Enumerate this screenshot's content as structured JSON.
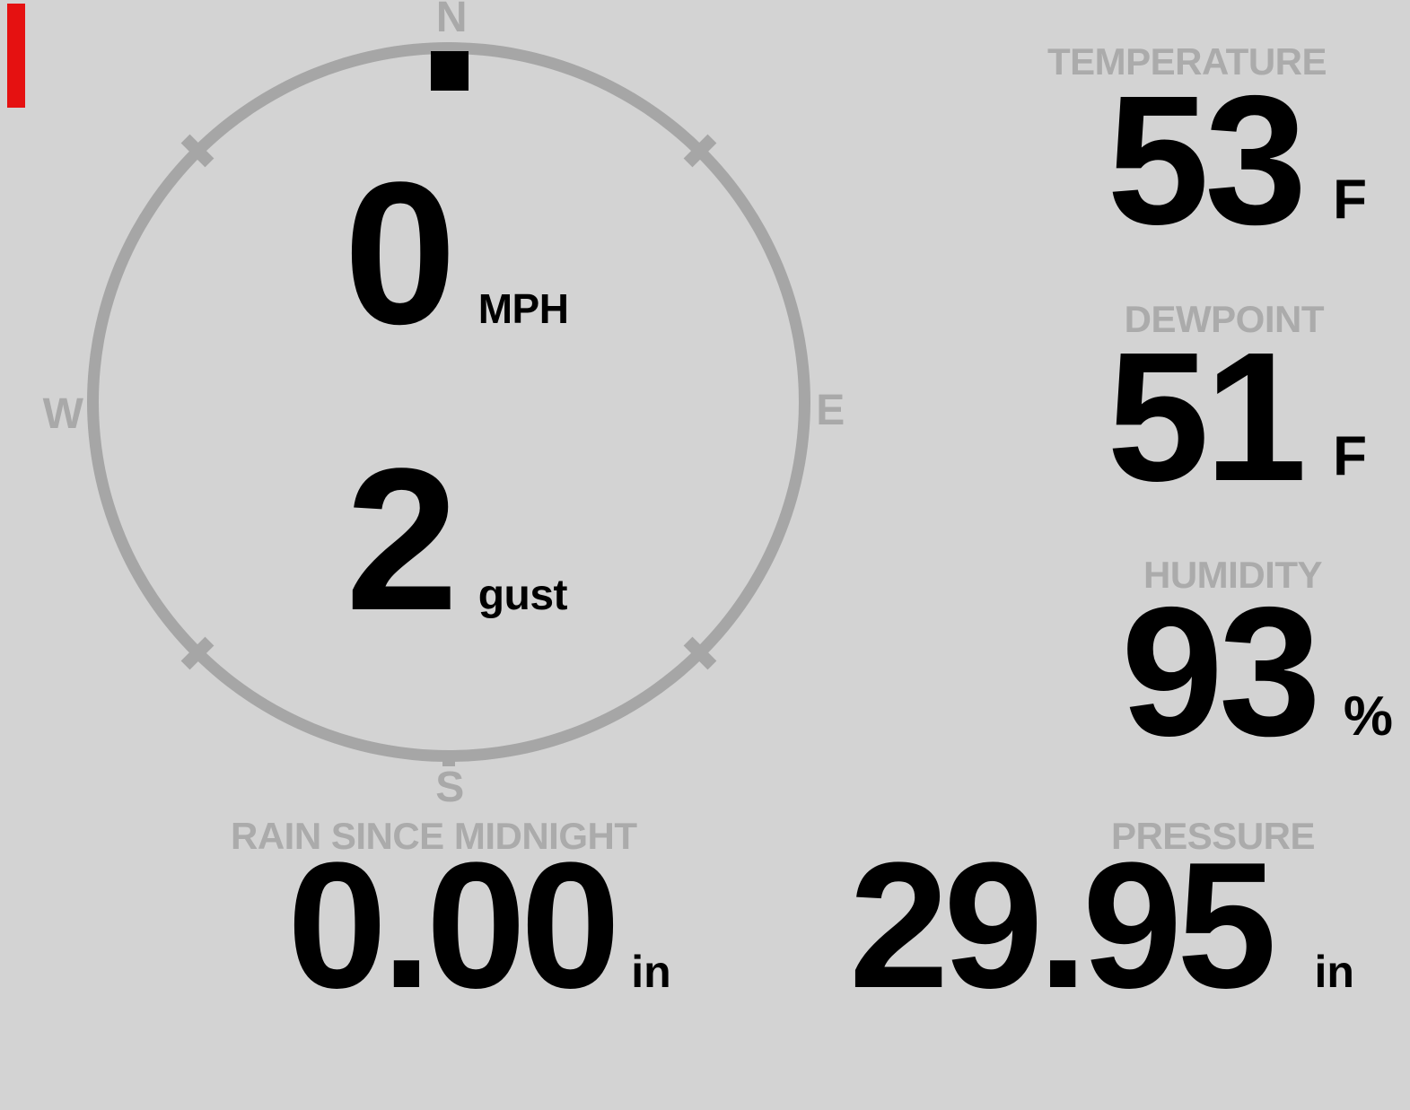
{
  "app": {
    "name": "weather-station-console"
  },
  "colors": {
    "background": "#d3d3d3",
    "dial": "#a6a6a6",
    "label": "#ababab",
    "value": "#000000",
    "indicator_bar": "#e51111"
  },
  "wind": {
    "cardinals": {
      "north": "N",
      "east": "E",
      "south": "S",
      "west": "W"
    },
    "direction": "N",
    "speed": {
      "value": "0",
      "unit": "MPH"
    },
    "gust": {
      "value": "2",
      "unit": "gust"
    }
  },
  "metrics": {
    "temperature": {
      "label": "TEMPERATURE",
      "value": "53",
      "unit": "F"
    },
    "dewpoint": {
      "label": "DEWPOINT",
      "value": "51",
      "unit": "F"
    },
    "humidity": {
      "label": "HUMIDITY",
      "value": "93",
      "unit": "%"
    },
    "rain": {
      "label": "RAIN SINCE MIDNIGHT",
      "value": "0.00",
      "unit": "in"
    },
    "pressure": {
      "label": "PRESSURE",
      "value": "29.95",
      "unit": "in"
    }
  }
}
